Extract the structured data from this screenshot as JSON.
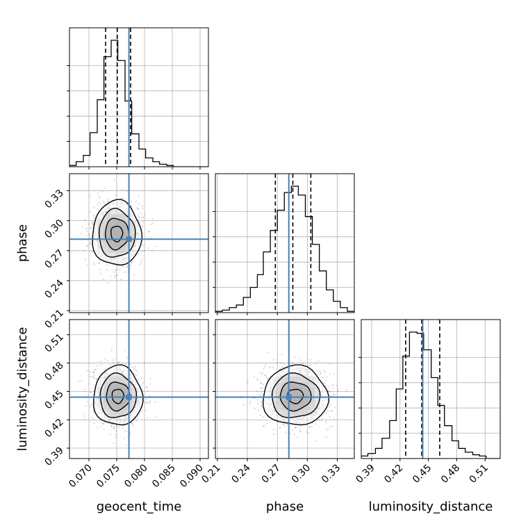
{
  "chart_data": {
    "type": "corner",
    "parameters": [
      "geocent_time",
      "phase",
      "luminosity_distance"
    ],
    "axis_labels": {
      "x": [
        "geocent_time",
        "phase",
        "luminosity_distance"
      ],
      "y": [
        "",
        "phase",
        "luminosity_distance"
      ]
    },
    "ranges": {
      "geocent_time": [
        0.0665,
        0.0915
      ],
      "phase": [
        0.208,
        0.347
      ],
      "luminosity_distance": [
        0.379,
        0.526
      ]
    },
    "ticks": {
      "geocent_time": [
        "0.070",
        "0.075",
        "0.080",
        "0.085",
        "0.090"
      ],
      "phase": [
        "0.21",
        "0.24",
        "0.27",
        "0.30",
        "0.33"
      ],
      "luminosity_distance": [
        "0.39",
        "0.42",
        "0.45",
        "0.48",
        "0.51"
      ]
    },
    "truths": {
      "geocent_time": 0.0772,
      "phase": 0.2815,
      "luminosity_distance": 0.444
    },
    "quantiles": {
      "geocent_time": [
        0.073,
        0.0751,
        0.0775
      ],
      "phase": [
        0.268,
        0.2855,
        0.3035
      ],
      "luminosity_distance": [
        0.426,
        0.443,
        0.462
      ]
    },
    "histograms": {
      "geocent_time": {
        "bin_edges": [
          0.0665,
          0.0677,
          0.069,
          0.0702,
          0.0715,
          0.0727,
          0.074,
          0.0752,
          0.0765,
          0.0777,
          0.079,
          0.0802,
          0.0815,
          0.0827,
          0.084,
          0.0852,
          0.0865,
          0.0877,
          0.089,
          0.0902,
          0.0915
        ],
        "counts": [
          0.01,
          0.04,
          0.09,
          0.27,
          0.53,
          0.87,
          1.0,
          0.84,
          0.52,
          0.26,
          0.14,
          0.07,
          0.04,
          0.02,
          0.01,
          0,
          0,
          0,
          0,
          0
        ]
      },
      "phase": {
        "bin_edges": [
          0.208,
          0.215,
          0.222,
          0.229,
          0.236,
          0.243,
          0.25,
          0.256,
          0.263,
          0.27,
          0.277,
          0.284,
          0.291,
          0.298,
          0.305,
          0.312,
          0.319,
          0.326,
          0.333,
          0.34,
          0.347
        ],
        "counts": [
          0.01,
          0.02,
          0.04,
          0.06,
          0.12,
          0.2,
          0.3,
          0.48,
          0.65,
          0.81,
          0.95,
          1.0,
          0.93,
          0.76,
          0.54,
          0.33,
          0.18,
          0.09,
          0.04,
          0.01
        ]
      },
      "luminosity_distance": {
        "bin_edges": [
          0.379,
          0.386,
          0.394,
          0.401,
          0.409,
          0.416,
          0.423,
          0.43,
          0.438,
          0.445,
          0.453,
          0.46,
          0.467,
          0.475,
          0.482,
          0.489,
          0.497,
          0.504,
          0.511,
          0.518,
          0.526
        ],
        "counts": [
          0.02,
          0.04,
          0.08,
          0.16,
          0.3,
          0.55,
          0.81,
          1.0,
          0.99,
          0.86,
          0.64,
          0.42,
          0.26,
          0.14,
          0.08,
          0.05,
          0.03,
          0.02,
          0,
          0
        ]
      }
    },
    "pair_stats": [
      {
        "x": "geocent_time",
        "y": "phase",
        "center": [
          0.075,
          0.287
        ],
        "sd": [
          0.0021,
          0.0155
        ]
      },
      {
        "x": "geocent_time",
        "y": "luminosity_distance",
        "center": [
          0.0752,
          0.445
        ],
        "sd": [
          0.0021,
          0.015
        ]
      },
      {
        "x": "phase",
        "y": "luminosity_distance",
        "center": [
          0.288,
          0.445
        ],
        "sd": [
          0.0155,
          0.015
        ]
      }
    ],
    "grid": true,
    "colors": {
      "truth": "#4682b4",
      "hist": "#000000",
      "quantile": "#000000",
      "grid": "#b0b0b0"
    }
  }
}
